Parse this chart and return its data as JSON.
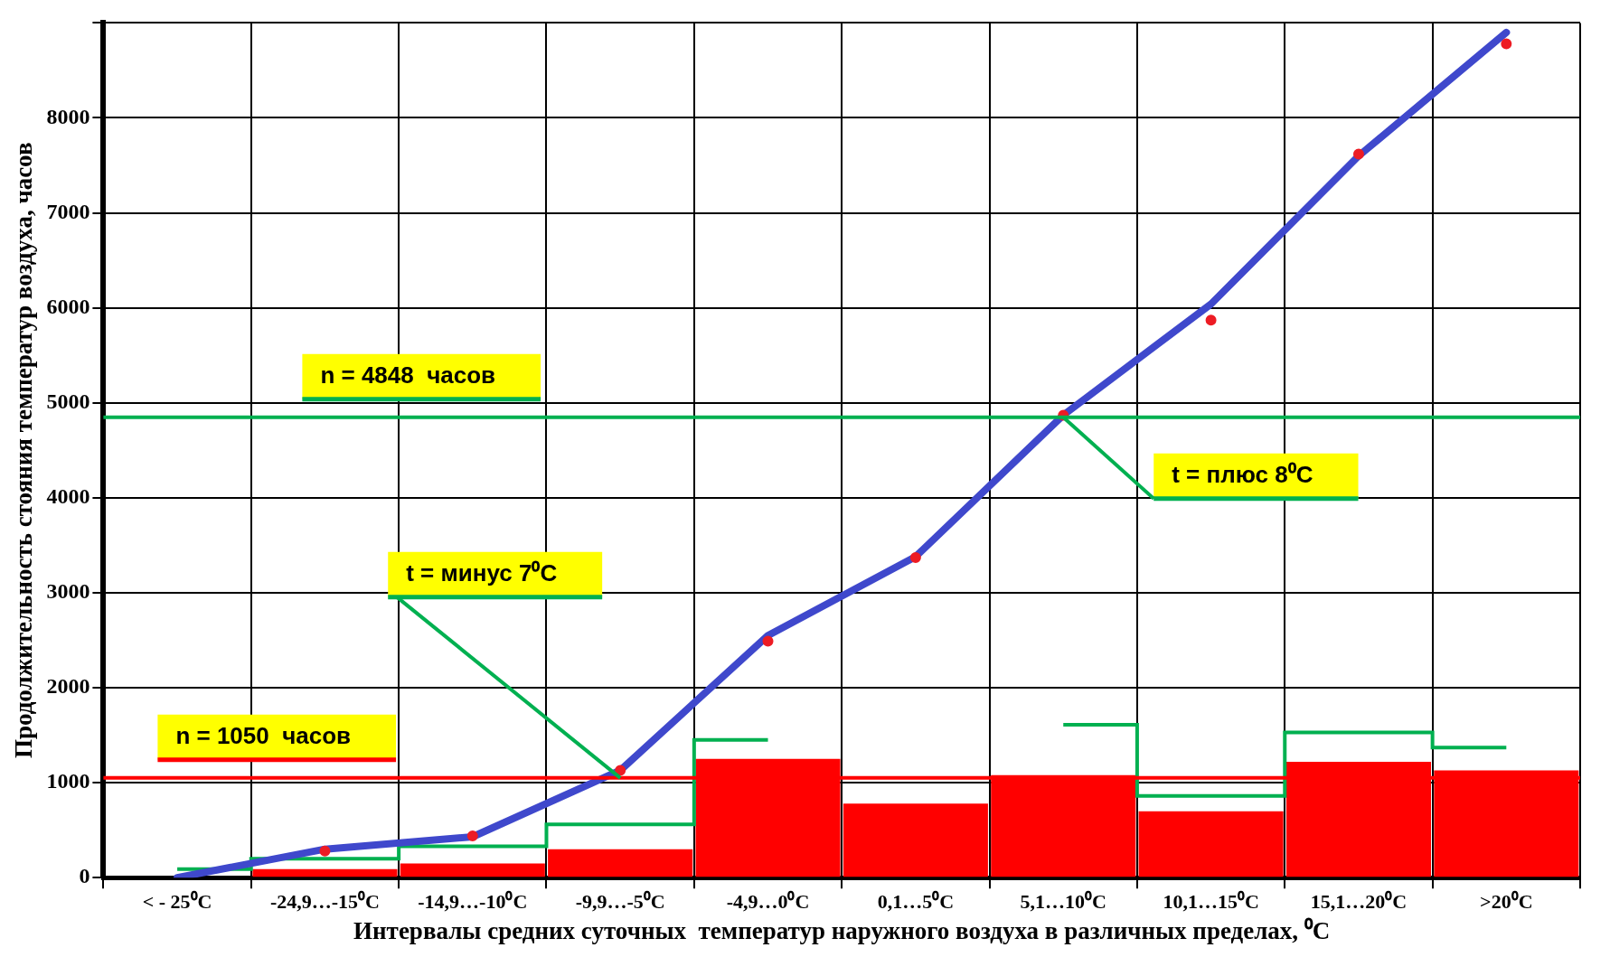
{
  "chart_data": {
    "type": "bar",
    "xlabel": "Интервалы средних суточных  температур наружного воздуха в различных пределах, ⁰C",
    "ylabel": "Продолжительность стояния температур воздуха, часов",
    "categories": [
      "< - 25⁰C",
      "-24,9…-15⁰C",
      "-14,9…-10⁰C",
      "-9,9…-5⁰C",
      "-4,9…0⁰C",
      "0,1…5⁰C",
      "5,1…10⁰C",
      "10,1…15⁰C",
      "15,1…20⁰C",
      ">20⁰C"
    ],
    "series": [
      {
        "color": "#ff0000",
        "values": [
          null,
          90,
          150,
          300,
          1250,
          780,
          1080,
          700,
          1220,
          1130
        ]
      },
      {
        "type": "step",
        "color": "#00b050",
        "values": [
          90,
          200,
          330,
          560,
          1450,
          null,
          1610,
          860,
          1530,
          1370
        ]
      },
      {
        "type": "line",
        "color": "#3f48cc",
        "values": [
          0,
          300,
          430,
          1130,
          2550,
          3380,
          4870,
          6040,
          7600,
          8900
        ]
      },
      {
        "type": "scatter",
        "color": "#ed1c24",
        "marker": "circle",
        "x": [
          "-24,9…-15⁰C",
          "-14,9…-10⁰C",
          "-9,9…-5⁰C",
          "-4,9…0⁰C",
          "0,1…5⁰C",
          "5,1…10⁰C",
          "10,1…15⁰C",
          "15,1…20⁰C",
          ">20⁰C"
        ],
        "values": [
          280,
          440,
          1130,
          2490,
          3370,
          4870,
          5870,
          7620,
          8780
        ]
      }
    ],
    "ylim": [
      0,
      9000
    ],
    "yticks": [
      0,
      1000,
      2000,
      3000,
      4000,
      5000,
      6000,
      7000,
      8000,
      {
        "value": 9000,
        "label": null
      }
    ],
    "grid": true,
    "legend": false,
    "ref_lines": [
      {
        "axis": "y",
        "value": 4848,
        "label": "n = 4848  часов",
        "color": "#00b050"
      },
      {
        "axis": "y",
        "value": 1050,
        "label": "n = 1050  часов",
        "color": "#ff0000"
      }
    ],
    "annotations": [
      {
        "text": "t = минус 7⁰C",
        "x": "-9,9…-5⁰C",
        "y": 1050
      },
      {
        "text": "t = плюс 8⁰C",
        "x": "5,1…10⁰C",
        "y": 4848
      }
    ]
  }
}
